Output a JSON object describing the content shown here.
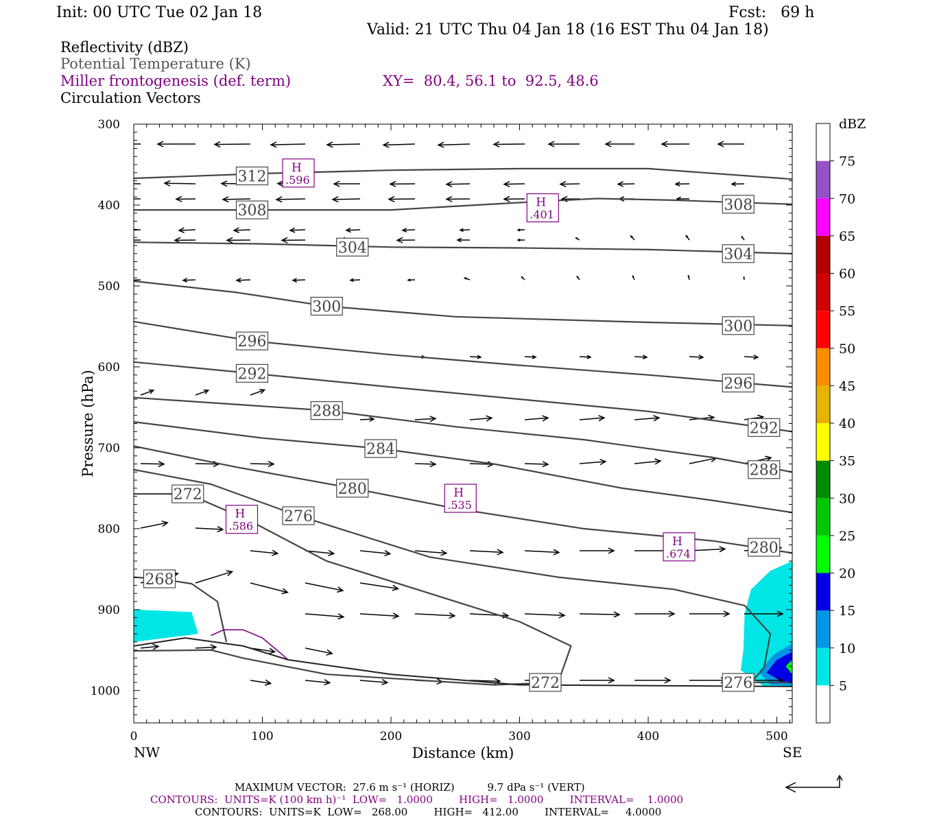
{
  "header": {
    "init": "Init: 00 UTC Tue 02 Jan 18",
    "fcst": "Fcst:   69 h",
    "valid": "Valid: 21 UTC Thu 04 Jan 18 (16 EST Thu 04 Jan 18)"
  },
  "legend_lines": {
    "reflectivity": "Reflectivity (dBZ)",
    "theta": "Potential Temperature (K)",
    "frontogenesis": "Miller frontogenesis (def. term)",
    "xy": "XY=  80.4, 56.1 to  92.5, 48.6",
    "vectors": "Circulation Vectors"
  },
  "colors": {
    "theta_contour": "#444444",
    "fronto_contour": "#800080",
    "fill_5": "#00e6e6",
    "fill_10": "#0096e6",
    "fill_15": "#0000e6",
    "fill_20": "#00ff00"
  },
  "footer": {
    "max_vector": "MAXIMUM VECTOR:  27.6 m s⁻¹ (HORIZ)          9.7 dPa s⁻¹ (VERT)",
    "contours_fronto": "CONTOURS:  UNITS=K (100 km h)⁻¹  LOW=   1.0000        HIGH=   1.0000        INTERVAL=    1.0000",
    "contours_theta": "CONTOURS:  UNITS=K  LOW=   268.00        HIGH=   412.00        INTERVAL=     4.0000"
  },
  "chart_data": {
    "type": "cross-section",
    "xlabel": "Distance (km)",
    "ylabel": "Pressure (hPa)",
    "xlim": [
      0,
      512
    ],
    "ylim": [
      1040,
      300
    ],
    "y_log_scale": false,
    "x_ticks": [
      0,
      100,
      200,
      300,
      400,
      500
    ],
    "y_ticks": [
      300,
      400,
      500,
      600,
      700,
      800,
      900,
      1000
    ],
    "x_end_labels": {
      "left": "NW",
      "right": "SE"
    },
    "colorbar": {
      "title": "dBZ",
      "levels": [
        5,
        10,
        15,
        20,
        25,
        30,
        35,
        40,
        45,
        50,
        55,
        60,
        65,
        70,
        75
      ],
      "colors": [
        "#ffffff",
        "#00e6e6",
        "#0096e6",
        "#0000e6",
        "#00ff00",
        "#00c800",
        "#008c00",
        "#ffff00",
        "#e6b400",
        "#ff8c00",
        "#ff0000",
        "#d20000",
        "#b40000",
        "#ff00ff",
        "#9650c8",
        "#ffffff"
      ]
    },
    "theta_contours": [
      {
        "label": "312",
        "label_pos": [
          92,
          364
        ],
        "points": [
          [
            0,
            367
          ],
          [
            100,
            361
          ],
          [
            200,
            357
          ],
          [
            300,
            355
          ],
          [
            400,
            355
          ],
          [
            512,
            368
          ]
        ]
      },
      {
        "label": "308",
        "label_pos": [
          92,
          406
        ],
        "label_pos2": [
          470,
          399
        ],
        "points": [
          [
            0,
            406
          ],
          [
            100,
            406
          ],
          [
            200,
            406
          ],
          [
            300,
            397
          ],
          [
            360,
            392
          ],
          [
            420,
            394
          ],
          [
            512,
            399
          ]
        ]
      },
      {
        "label": "304",
        "label_pos": [
          170,
          452
        ],
        "label_pos2": [
          470,
          460
        ],
        "points": [
          [
            0,
            446
          ],
          [
            100,
            448
          ],
          [
            200,
            452
          ],
          [
            300,
            453
          ],
          [
            400,
            455
          ],
          [
            512,
            460
          ]
        ]
      },
      {
        "label": "300",
        "label_pos": [
          150,
          525
        ],
        "label_pos2": [
          470,
          549
        ],
        "points": [
          [
            0,
            494
          ],
          [
            80,
            508
          ],
          [
            150,
            525
          ],
          [
            250,
            538
          ],
          [
            400,
            545
          ],
          [
            512,
            549
          ]
        ]
      },
      {
        "label": "296",
        "label_pos": [
          92,
          568
        ],
        "label_pos2": [
          470,
          620
        ],
        "points": [
          [
            0,
            544
          ],
          [
            92,
            568
          ],
          [
            200,
            585
          ],
          [
            300,
            598
          ],
          [
            400,
            610
          ],
          [
            512,
            625
          ]
        ]
      },
      {
        "label": "292",
        "label_pos": [
          92,
          608
        ],
        "label_pos2": [
          490,
          675
        ],
        "points": [
          [
            0,
            594
          ],
          [
            92,
            608
          ],
          [
            200,
            625
          ],
          [
            300,
            640
          ],
          [
            400,
            655
          ],
          [
            512,
            680
          ]
        ]
      },
      {
        "label": "288",
        "label_pos": [
          150,
          654
        ],
        "label_pos2": [
          490,
          727
        ],
        "points": [
          [
            0,
            638
          ],
          [
            150,
            654
          ],
          [
            250,
            674
          ],
          [
            350,
            690
          ],
          [
            450,
            712
          ],
          [
            512,
            730
          ]
        ]
      },
      {
        "label": "284",
        "label_pos": [
          192,
          701
        ],
        "points": [
          [
            0,
            668
          ],
          [
            100,
            688
          ],
          [
            192,
            701
          ],
          [
            280,
            720
          ],
          [
            380,
            750
          ],
          [
            450,
            765
          ],
          [
            512,
            780
          ]
        ]
      },
      {
        "label": "280",
        "label_pos": [
          170,
          750
        ],
        "label_pos2": [
          490,
          823
        ],
        "points": [
          [
            0,
            698
          ],
          [
            80,
            724
          ],
          [
            170,
            750
          ],
          [
            250,
            775
          ],
          [
            350,
            800
          ],
          [
            450,
            815
          ],
          [
            512,
            830
          ]
        ]
      },
      {
        "label": "276",
        "label_pos": [
          128,
          784
        ],
        "label_pos2": [
          470,
          990
        ],
        "points": [
          [
            0,
            727
          ],
          [
            60,
            745
          ],
          [
            128,
            784
          ],
          [
            230,
            835
          ],
          [
            330,
            860
          ],
          [
            420,
            875
          ],
          [
            475,
            895
          ],
          [
            495,
            930
          ],
          [
            490,
            972
          ],
          [
            480,
            990
          ],
          [
            512,
            990
          ]
        ]
      },
      {
        "label": "272",
        "label_pos": [
          42,
          757
        ],
        "label_pos2": [
          320,
          990
        ],
        "points": [
          [
            0,
            757
          ],
          [
            42,
            757
          ],
          [
            90,
            790
          ],
          [
            150,
            840
          ],
          [
            230,
            880
          ],
          [
            300,
            915
          ],
          [
            340,
            945
          ],
          [
            330,
            990
          ],
          [
            280,
            993
          ],
          [
            150,
            980
          ],
          [
            85,
            960
          ],
          [
            60,
            950
          ],
          [
            0,
            951
          ]
        ]
      },
      {
        "label": "268",
        "label_pos": [
          20,
          862
        ],
        "points": [
          [
            0,
            860
          ],
          [
            20,
            862
          ],
          [
            45,
            868
          ],
          [
            65,
            890
          ],
          [
            72,
            940
          ]
        ]
      }
    ],
    "frontogenesis_maxima": [
      {
        "label": "H",
        "value": ".596",
        "pos": [
          128,
          360
        ]
      },
      {
        "label": "H",
        "value": ".401",
        "pos": [
          318,
          403
        ]
      },
      {
        "label": "H",
        "value": ".586",
        "pos": [
          84,
          788
        ]
      },
      {
        "label": "H",
        "value": ".535",
        "pos": [
          254,
          762
        ]
      },
      {
        "label": "H",
        "value": ".674",
        "pos": [
          424,
          822
        ]
      }
    ]
  }
}
